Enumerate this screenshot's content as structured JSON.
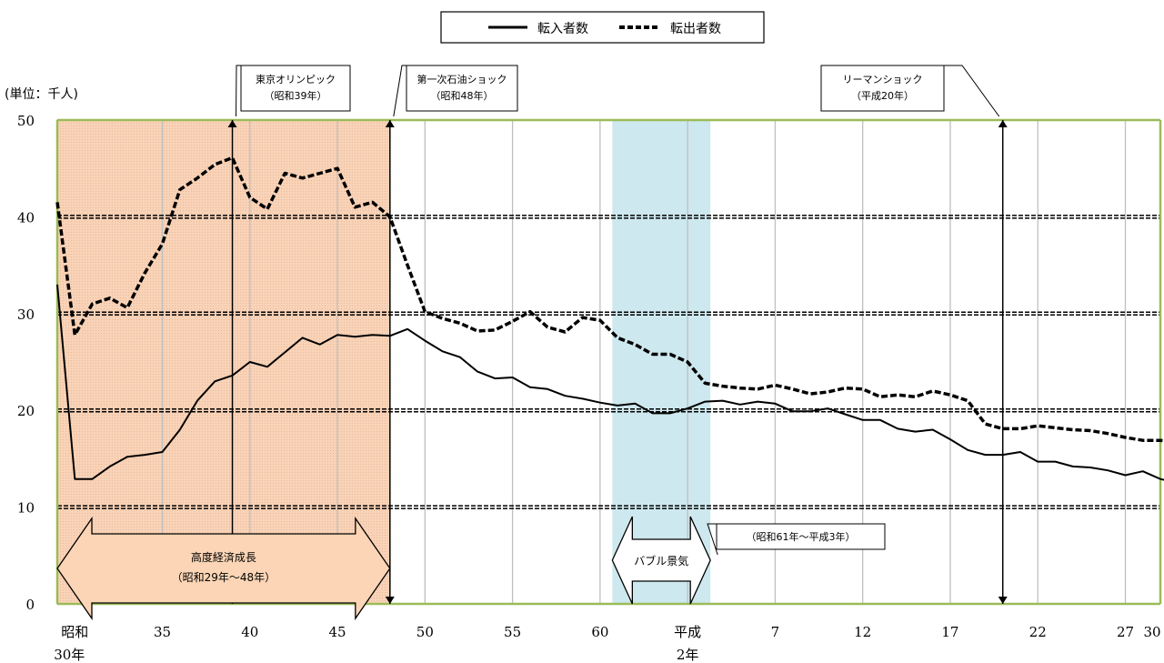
{
  "chart_data": {
    "type": "line",
    "unit_label": "(単位：千人)",
    "ylim": [
      0,
      50
    ],
    "y_ticks": [
      "0",
      "10",
      "20",
      "30",
      "40",
      "50"
    ],
    "x_range": [
      1955,
      2018
    ],
    "x_ticks": [
      {
        "year": 1955,
        "label": "昭和",
        "label2": "30年"
      },
      {
        "year": 1960,
        "label": "35",
        "label2": ""
      },
      {
        "year": 1965,
        "label": "40",
        "label2": ""
      },
      {
        "year": 1970,
        "label": "45",
        "label2": ""
      },
      {
        "year": 1975,
        "label": "50",
        "label2": ""
      },
      {
        "year": 1980,
        "label": "55",
        "label2": ""
      },
      {
        "year": 1985,
        "label": "60",
        "label2": ""
      },
      {
        "year": 1990,
        "label": "平成",
        "label2": "2年"
      },
      {
        "year": 1995,
        "label": "7",
        "label2": ""
      },
      {
        "year": 2000,
        "label": "12",
        "label2": ""
      },
      {
        "year": 2005,
        "label": "17",
        "label2": ""
      },
      {
        "year": 2010,
        "label": "22",
        "label2": ""
      },
      {
        "year": 2015,
        "label": "27",
        "label2": ""
      },
      {
        "year": 2018,
        "label": "30",
        "label2": ""
      }
    ],
    "x": [
      1954,
      1955,
      1956,
      1957,
      1958,
      1959,
      1960,
      1961,
      1962,
      1963,
      1964,
      1965,
      1966,
      1967,
      1968,
      1969,
      1970,
      1971,
      1972,
      1973,
      1974,
      1975,
      1976,
      1977,
      1978,
      1979,
      1980,
      1981,
      1982,
      1983,
      1984,
      1985,
      1986,
      1987,
      1988,
      1989,
      1990,
      1991,
      1992,
      1993,
      1994,
      1995,
      1996,
      1997,
      1998,
      1999,
      2000,
      2001,
      2002,
      2003,
      2004,
      2005,
      2006,
      2007,
      2008,
      2009,
      2010,
      2011,
      2012,
      2013,
      2014,
      2015,
      2016,
      2017,
      2018
    ],
    "series": [
      {
        "name": "転入者数",
        "style": "solid",
        "values": [
          33.0,
          12.9,
          12.9,
          14.2,
          15.2,
          15.4,
          15.7,
          18.0,
          21.0,
          23.0,
          23.6,
          25.0,
          24.5,
          26.0,
          27.5,
          26.8,
          27.8,
          27.6,
          27.8,
          27.7,
          28.4,
          27.2,
          26.1,
          25.5,
          24.0,
          23.3,
          23.4,
          22.4,
          22.2,
          21.5,
          21.2,
          20.8,
          20.5,
          20.7,
          19.7,
          19.7,
          20.2,
          20.9,
          21.0,
          20.6,
          20.9,
          20.7,
          19.9,
          19.9,
          20.2,
          19.6,
          19.0,
          19.0,
          18.1,
          17.8,
          18.0,
          17.0,
          15.9,
          15.4,
          15.4,
          15.7,
          14.7,
          14.7,
          14.2,
          14.1,
          13.8,
          13.3,
          13.7,
          12.9,
          12.5
        ]
      },
      {
        "name": "転出者数",
        "style": "dashed",
        "values": [
          41.5,
          27.8,
          31.0,
          31.6,
          30.6,
          34.2,
          37.2,
          42.8,
          44.0,
          45.4,
          46.1,
          42.0,
          40.8,
          44.5,
          44.0,
          44.5,
          45.0,
          41.0,
          41.5,
          40.0,
          35.0,
          30.2,
          29.5,
          29.0,
          28.2,
          28.3,
          29.2,
          30.2,
          28.6,
          28.1,
          29.6,
          29.3,
          27.5,
          26.8,
          25.8,
          25.8,
          25.0,
          22.8,
          22.5,
          22.3,
          22.2,
          22.6,
          22.2,
          21.7,
          21.9,
          22.3,
          22.2,
          21.4,
          21.6,
          21.4,
          22.0,
          21.6,
          21.0,
          18.6,
          18.1,
          18.1,
          18.4,
          18.2,
          18.0,
          17.9,
          17.6,
          17.2,
          16.9,
          16.9,
          16.7
        ]
      }
    ],
    "shaded_regions": [
      {
        "from": 1954,
        "to": 1973,
        "color": "#f9d3b8",
        "pattern": true
      },
      {
        "from": 1985.7,
        "to": 1991.3,
        "color": "#cde8ee",
        "pattern": false
      }
    ],
    "events": [
      {
        "year": 1964,
        "lines": [
          "東京オリンピック",
          "（昭和39年）"
        ]
      },
      {
        "year": 1973,
        "lines": [
          "第一次石油ショック",
          "（昭和48年）"
        ]
      },
      {
        "year": 2008,
        "lines": [
          "リーマンショック",
          "（平成20年）"
        ]
      }
    ],
    "periods": [
      {
        "lines": [
          "高度経済成長",
          "（昭和29年～48年）"
        ]
      },
      {
        "lines": [
          "バブル景気"
        ],
        "note": "（昭和61年～平成3年）"
      }
    ],
    "colors": {
      "grid_h": "#000000",
      "grid_v": "#bfbfbf",
      "frame": "#9bbb59",
      "shade_stroke": "#b08060"
    }
  }
}
